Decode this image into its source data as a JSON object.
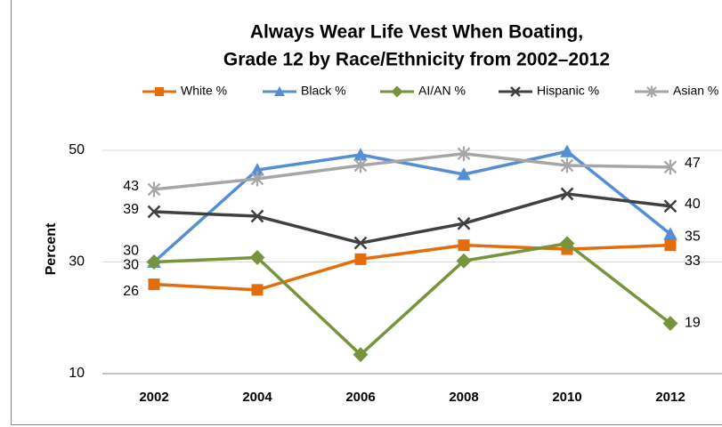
{
  "chart_data": {
    "type": "line",
    "title": [
      "Always Wear Life Vest When Boating,",
      "Grade 12 by Race/Ethnicity from 2002–2012"
    ],
    "y_label": "Percent",
    "categories": [
      "2002",
      "2004",
      "2006",
      "2008",
      "2010",
      "2012"
    ],
    "series": [
      {
        "name": "White %",
        "color": "#e46c0a",
        "marker": "square",
        "values": [
          26,
          25,
          30.5,
          33,
          32.3,
          33
        ],
        "value_labels": [
          "26",
          null,
          null,
          null,
          null,
          "33"
        ]
      },
      {
        "name": "Black %",
        "color": "#558ed5",
        "marker": "triangle",
        "values": [
          30,
          46.5,
          49.2,
          45.7,
          49.8,
          35
        ],
        "value_labels": [
          "30",
          null,
          null,
          null,
          null,
          "35"
        ]
      },
      {
        "name": "AI/AN %",
        "color": "#77933c",
        "marker": "diamond",
        "values": [
          30,
          30.8,
          13.4,
          30.2,
          33.3,
          19
        ],
        "value_labels": [
          "30",
          null,
          null,
          null,
          null,
          "19"
        ]
      },
      {
        "name": "Hispanic %",
        "color": "#404040",
        "marker": "x",
        "values": [
          39,
          38.2,
          33.4,
          36.9,
          42.2,
          40
        ],
        "value_labels": [
          "39",
          null,
          null,
          null,
          null,
          "40"
        ]
      },
      {
        "name": "Asian %",
        "color": "#a6a6a6",
        "marker": "star",
        "values": [
          43,
          44.9,
          47.3,
          49.4,
          47.3,
          47
        ],
        "value_labels": [
          "43",
          null,
          null,
          null,
          null,
          "47"
        ]
      }
    ],
    "ylim": [
      10,
      50
    ],
    "yticks": [
      10,
      30,
      50
    ],
    "grid": true,
    "legend": "top"
  }
}
